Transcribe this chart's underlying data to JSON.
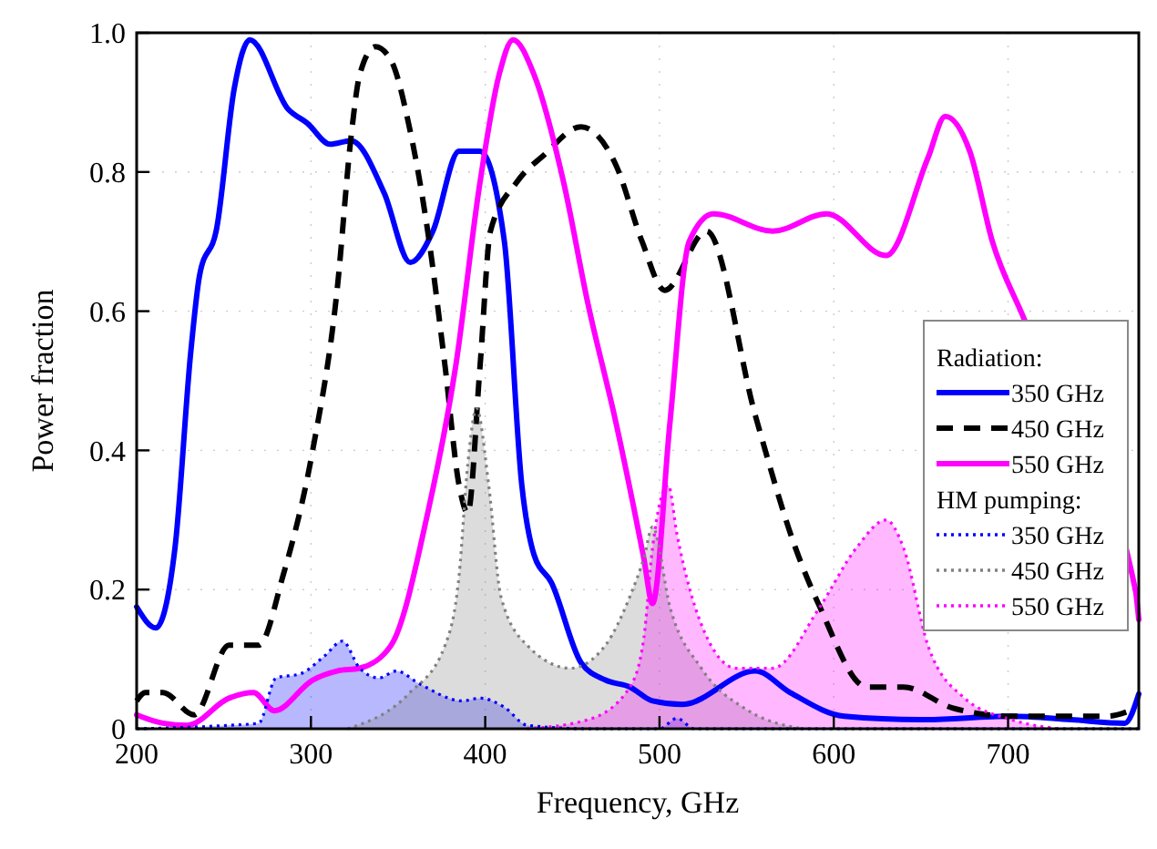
{
  "chart_data": {
    "type": "line",
    "xlabel": "Frequency, GHz",
    "ylabel": "Power fraction",
    "legend_title": "Radiation:",
    "annotations": [
      "HM pumping:"
    ],
    "xlim": [
      200,
      775
    ],
    "ylim": [
      0,
      1
    ],
    "xticks": [
      200,
      300,
      400,
      500,
      600,
      700
    ],
    "yticks": [
      0,
      0.2,
      0.4,
      0.6,
      0.8,
      {
        "value": 1,
        "label": "1.0"
      }
    ],
    "grid": true,
    "legend": "right",
    "series": [
      {
        "name": "350 GHz",
        "type": "line",
        "line_style": "solid",
        "color": "#0000ff",
        "x": [
          200,
          211,
          222,
          231,
          236,
          246,
          256,
          265,
          287,
          298,
          311,
          323,
          342,
          357,
          370,
          385,
          397,
          411,
          421,
          428,
          438,
          455,
          469,
          483,
          496,
          513,
          555,
          575,
          606,
          650,
          702,
          736,
          767,
          775
        ],
        "values": [
          0.175,
          0.145,
          0.26,
          0.54,
          0.65,
          0.72,
          0.92,
          0.99,
          0.89,
          0.87,
          0.84,
          0.845,
          0.77,
          0.67,
          0.715,
          0.83,
          0.83,
          0.7,
          0.35,
          0.25,
          0.21,
          0.095,
          0.07,
          0.06,
          0.04,
          0.035,
          0.083,
          0.052,
          0.018,
          0.013,
          0.018,
          0.013,
          0.008,
          0.05
        ]
      },
      {
        "name": "450 GHz",
        "type": "line",
        "line_style": "dashed",
        "color": "#000000",
        "x": [
          200,
          205,
          215,
          233,
          253,
          270,
          284,
          301,
          315,
          323,
          328,
          337,
          346,
          356,
          367,
          377,
          385,
          390,
          397,
          403,
          418,
          434,
          455,
          475,
          490,
          503,
          527,
          555,
          578,
          592,
          619,
          640,
          668,
          702,
          736,
          757,
          770
        ],
        "values": [
          0.04,
          0.052,
          0.052,
          0.02,
          0.12,
          0.12,
          0.22,
          0.4,
          0.63,
          0.85,
          0.94,
          0.98,
          0.96,
          0.87,
          0.715,
          0.52,
          0.35,
          0.31,
          0.52,
          0.715,
          0.785,
          0.825,
          0.865,
          0.81,
          0.7,
          0.63,
          0.715,
          0.45,
          0.26,
          0.175,
          0.06,
          0.06,
          0.03,
          0.018,
          0.018,
          0.018,
          0.026
        ]
      },
      {
        "name": "550 GHz",
        "type": "line",
        "line_style": "solid",
        "color": "#ff00ff",
        "x": [
          200,
          215,
          229,
          253,
          267,
          279,
          301,
          315,
          328,
          346,
          367,
          383,
          397,
          408,
          416,
          428,
          445,
          459,
          475,
          491,
          496,
          506,
          517,
          531,
          565,
          596,
          630,
          654,
          664,
          678,
          691,
          709,
          773,
          775
        ],
        "values": [
          0.02,
          0.008,
          0.005,
          0.044,
          0.052,
          0.026,
          0.07,
          0.083,
          0.087,
          0.12,
          0.31,
          0.52,
          0.785,
          0.94,
          0.99,
          0.94,
          0.785,
          0.61,
          0.44,
          0.245,
          0.18,
          0.44,
          0.7,
          0.74,
          0.715,
          0.74,
          0.68,
          0.82,
          0.88,
          0.83,
          0.7,
          0.59,
          0.2,
          0.157
        ]
      },
      {
        "name": "350 GHz",
        "type": "area",
        "line_style": "dotted",
        "color": "#0000ff",
        "x": [
          200,
          253,
          270,
          280,
          294,
          308,
          318,
          328,
          339,
          349,
          362,
          387,
          397,
          411,
          424,
          459,
          500,
          510,
          520,
          775
        ],
        "values": [
          0,
          0.005,
          0.008,
          0.073,
          0.079,
          0.105,
          0.126,
          0.087,
          0.073,
          0.083,
          0.065,
          0.04,
          0.044,
          0.031,
          0.005,
          0,
          0,
          0.015,
          0,
          0
        ]
      },
      {
        "name": "450 GHz",
        "type": "area",
        "line_style": "dotted",
        "color": "#808080",
        "x": [
          321,
          356,
          377,
          385,
          390,
          395,
          402,
          409,
          424,
          449,
          469,
          483,
          491,
          496,
          506,
          524,
          551,
          582
        ],
        "values": [
          0,
          0.05,
          0.12,
          0.22,
          0.38,
          0.46,
          0.35,
          0.19,
          0.12,
          0.087,
          0.12,
          0.19,
          0.245,
          0.29,
          0.175,
          0.087,
          0.026,
          0
        ]
      },
      {
        "name": "550 GHz",
        "type": "area",
        "line_style": "dotted",
        "color": "#ff00ff",
        "x": [
          424,
          459,
          483,
          491,
          496,
          505,
          510,
          524,
          544,
          565,
          592,
          613,
          630,
          640,
          654,
          675,
          702,
          729
        ],
        "values": [
          0,
          0.013,
          0.06,
          0.13,
          0.26,
          0.35,
          0.28,
          0.15,
          0.087,
          0.087,
          0.175,
          0.26,
          0.3,
          0.26,
          0.12,
          0.044,
          0.013,
          0
        ]
      }
    ]
  }
}
